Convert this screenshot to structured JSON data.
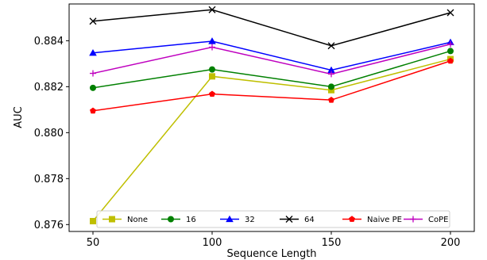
{
  "chart_data": {
    "type": "line",
    "title": "",
    "xlabel": "Sequence Length",
    "ylabel": "AUC",
    "x": [
      50,
      100,
      150,
      200
    ],
    "xlim": [
      40,
      210
    ],
    "ylim": [
      0.8757,
      0.8856
    ],
    "xticks": [
      "50",
      "100",
      "150",
      "200"
    ],
    "yticks": [
      "0.876",
      "0.878",
      "0.880",
      "0.882",
      "0.884"
    ],
    "grid": false,
    "legend_position": "bottom-center, single row",
    "series": [
      {
        "name": "None",
        "color": "#bfbf00",
        "marker": "square",
        "values": [
          0.87615,
          0.88245,
          0.88185,
          0.8832
        ]
      },
      {
        "name": "16",
        "color": "#008000",
        "marker": "circle",
        "values": [
          0.88195,
          0.88275,
          0.882,
          0.88355
        ]
      },
      {
        "name": "32",
        "color": "#0000ff",
        "marker": "triangle",
        "values": [
          0.88347,
          0.88398,
          0.88272,
          0.88393
        ]
      },
      {
        "name": "64",
        "color": "#000000",
        "marker": "x",
        "values": [
          0.88485,
          0.88535,
          0.88378,
          0.88522
        ]
      },
      {
        "name": "Naive PE",
        "color": "#ff0000",
        "marker": "pentagon",
        "values": [
          0.88095,
          0.88168,
          0.88142,
          0.88312
        ]
      },
      {
        "name": "CoPE",
        "color": "#bf00bf",
        "marker": "plus",
        "values": [
          0.88258,
          0.88372,
          0.88255,
          0.88385
        ]
      }
    ]
  }
}
